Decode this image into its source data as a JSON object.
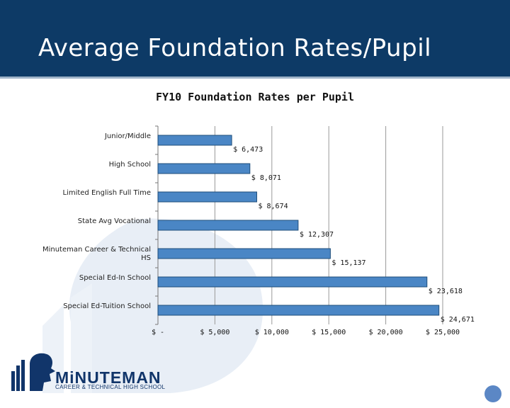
{
  "slide": {
    "title": "Average Foundation Rates/Pupil"
  },
  "logo": {
    "name": "MiNUTEMAN",
    "subtitle": "CAREER & TECHNICAL HIGH SCHOOL"
  },
  "colors": {
    "header": "#0d3a66",
    "bar": "#4a86c5",
    "bar_edge": "#1f4e7a",
    "grid": "#999999"
  },
  "chart_data": {
    "type": "bar",
    "orientation": "horizontal",
    "title": "FY10 Foundation Rates per Pupil",
    "categories": [
      "Junior/Middle",
      "High School",
      "Limited English Full Time",
      "State Avg Vocational",
      "Minuteman Career  & Technical HS",
      "Special Ed-In School",
      "Special Ed-Tuition School"
    ],
    "category_lines": [
      [
        "Junior/Middle"
      ],
      [
        "High School"
      ],
      [
        "Limited English Full Time"
      ],
      [
        "State Avg Vocational"
      ],
      [
        "Minuteman Career  & Technical",
        "HS"
      ],
      [
        "Special Ed-In School"
      ],
      [
        "Special Ed-Tuition School"
      ]
    ],
    "values": [
      6473,
      8071,
      8674,
      12307,
      15137,
      23618,
      24671
    ],
    "value_labels": [
      "$ 6,473",
      "$ 8,071",
      "$ 8,674",
      "$ 12,307",
      "$ 15,137",
      "$ 23,618",
      "$ 24,671"
    ],
    "xlim": [
      0,
      25000
    ],
    "xticks": [
      0,
      5000,
      10000,
      15000,
      20000,
      25000
    ],
    "xtick_labels": [
      "$ -",
      "$ 5,000",
      "$ 10,000",
      "$ 15,000",
      "$ 20,000",
      "$ 25,000"
    ],
    "xlabel": "",
    "ylabel": "",
    "grid": true,
    "legend": "none"
  }
}
